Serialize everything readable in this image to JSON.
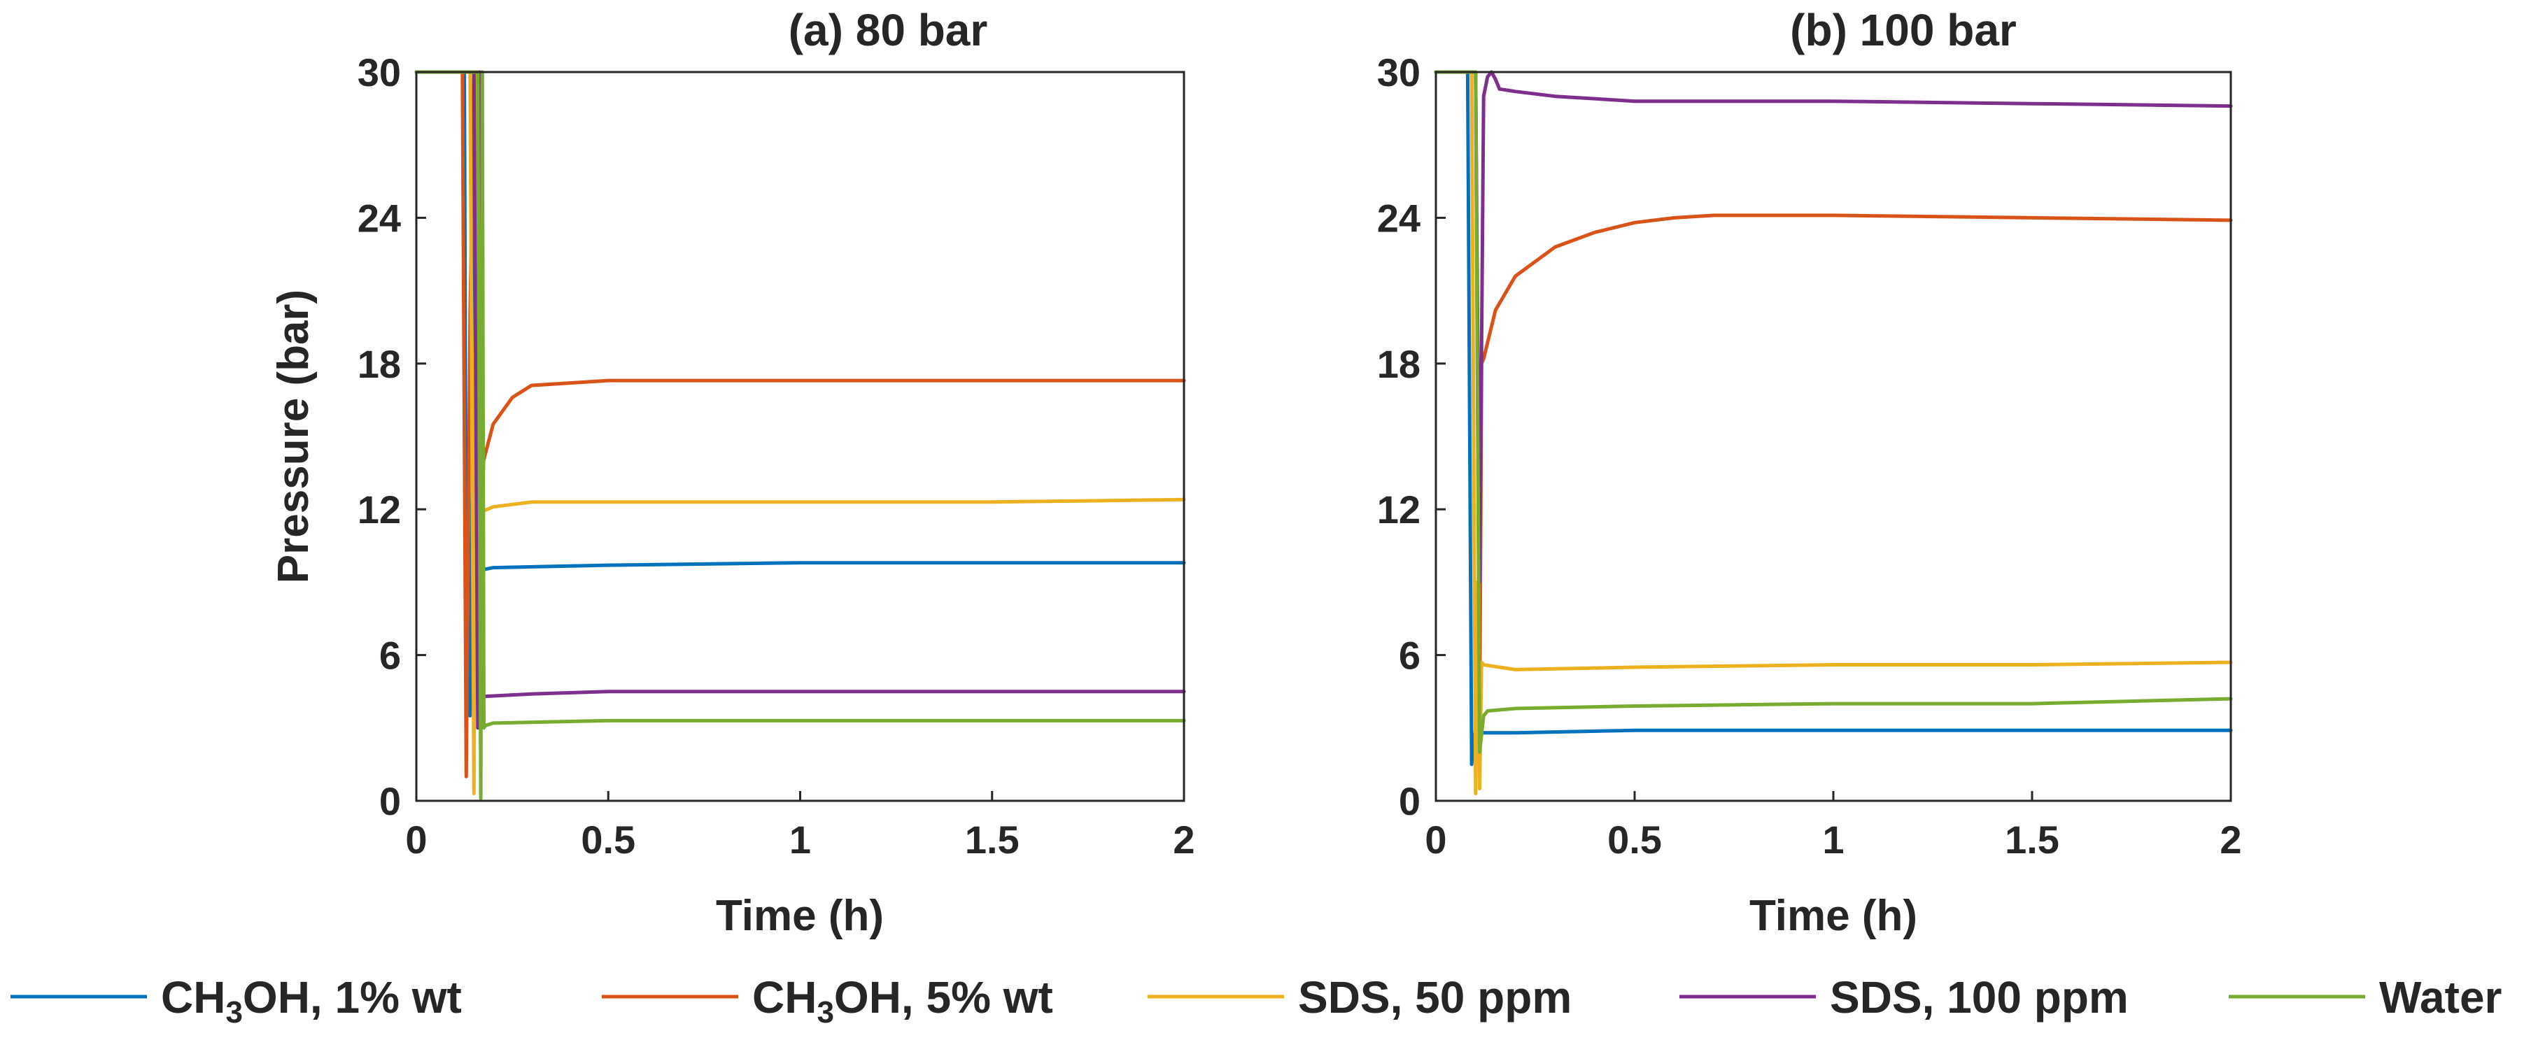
{
  "chart_data": [
    {
      "type": "line",
      "title": "(a) 80 bar",
      "xlabel": "Time (h)",
      "ylabel": "Pressure (bar)",
      "xlim": [
        0,
        2
      ],
      "ylim": [
        0,
        30
      ],
      "xticks": [
        0,
        0.5,
        1,
        1.5,
        2
      ],
      "xtick_labels": [
        "0",
        "0.5",
        "1",
        "1.5",
        "2"
      ],
      "yticks": [
        0,
        6,
        12,
        18,
        24,
        30
      ],
      "ytick_labels": [
        "0",
        "6",
        "12",
        "18",
        "24",
        "30"
      ],
      "series": [
        {
          "name": "CH3OH, 1% wt",
          "x": [
            0,
            0.125,
            0.13,
            0.14,
            0.155,
            0.17,
            0.2,
            0.5,
            1.0,
            1.5,
            2.0
          ],
          "y": [
            30,
            30,
            8,
            3.5,
            30,
            9.5,
            9.6,
            9.7,
            9.8,
            9.8,
            9.8
          ]
        },
        {
          "name": "CH3OH, 5% wt",
          "x": [
            0,
            0.12,
            0.13,
            0.14,
            0.15,
            0.16,
            0.175,
            0.2,
            0.25,
            0.3,
            0.4,
            0.5,
            1.0,
            1.5,
            2.0
          ],
          "y": [
            30,
            30,
            1,
            20,
            30,
            4,
            14,
            15.5,
            16.6,
            17.1,
            17.2,
            17.3,
            17.3,
            17.3,
            17.3
          ]
        },
        {
          "name": "SDS, 50 ppm",
          "x": [
            0,
            0.14,
            0.15,
            0.155,
            0.16,
            0.17,
            0.2,
            0.3,
            0.5,
            1.0,
            1.5,
            2.0
          ],
          "y": [
            30,
            30,
            0.3,
            30,
            12,
            11.9,
            12.1,
            12.3,
            12.3,
            12.3,
            12.3,
            12.4
          ]
        },
        {
          "name": "SDS, 100 ppm",
          "x": [
            0,
            0.15,
            0.16,
            0.165,
            0.17,
            0.18,
            0.3,
            0.5,
            1.0,
            1.5,
            2.0
          ],
          "y": [
            30,
            30,
            3,
            30,
            4.3,
            4.3,
            4.4,
            4.5,
            4.5,
            4.5,
            4.5
          ]
        },
        {
          "name": "Water",
          "x": [
            0,
            0.16,
            0.168,
            0.172,
            0.176,
            0.18,
            0.2,
            0.5,
            1.0,
            1.5,
            2.0
          ],
          "y": [
            30,
            30,
            0.1,
            30,
            3,
            3.1,
            3.2,
            3.3,
            3.3,
            3.3,
            3.3
          ]
        }
      ]
    },
    {
      "type": "line",
      "title": "(b) 100 bar",
      "xlabel": "Time (h)",
      "ylabel": "",
      "xlim": [
        0,
        2
      ],
      "ylim": [
        0,
        30
      ],
      "xticks": [
        0,
        0.5,
        1,
        1.5,
        2
      ],
      "xtick_labels": [
        "0",
        "0.5",
        "1",
        "1.5",
        "2"
      ],
      "yticks": [
        0,
        6,
        12,
        18,
        24,
        30
      ],
      "ytick_labels": [
        "0",
        "6",
        "12",
        "18",
        "24",
        "30"
      ],
      "series": [
        {
          "name": "CH3OH, 1% wt",
          "x": [
            0,
            0.08,
            0.09,
            0.1,
            0.11,
            0.12,
            0.2,
            0.5,
            1.0,
            1.5,
            2.0
          ],
          "y": [
            30,
            30,
            1.5,
            3,
            2.8,
            2.8,
            2.8,
            2.9,
            2.9,
            2.9,
            2.9
          ]
        },
        {
          "name": "CH3OH, 5% wt",
          "x": [
            0,
            0.1,
            0.11,
            0.115,
            0.12,
            0.15,
            0.2,
            0.3,
            0.4,
            0.5,
            0.6,
            0.7,
            1.0,
            1.5,
            2.0
          ],
          "y": [
            30,
            30,
            3,
            18,
            18.2,
            20.2,
            21.6,
            22.8,
            23.4,
            23.8,
            24.0,
            24.1,
            24.1,
            24.0,
            23.9
          ]
        },
        {
          "name": "SDS, 50 ppm",
          "x": [
            0,
            0.09,
            0.1,
            0.105,
            0.11,
            0.115,
            0.12,
            0.2,
            0.5,
            1.0,
            1.5,
            2.0
          ],
          "y": [
            30,
            30,
            0.3,
            9,
            0.5,
            5.7,
            5.6,
            5.4,
            5.5,
            5.6,
            5.6,
            5.7
          ]
        },
        {
          "name": "SDS, 100 ppm",
          "x": [
            0,
            0.1,
            0.11,
            0.12,
            0.13,
            0.14,
            0.15,
            0.16,
            0.2,
            0.3,
            0.5,
            1.0,
            1.5,
            2.0
          ],
          "y": [
            30,
            30,
            9,
            29,
            29.8,
            30,
            29.7,
            29.3,
            29.2,
            29.0,
            28.8,
            28.8,
            28.7,
            28.6
          ]
        },
        {
          "name": "Water",
          "x": [
            0,
            0.1,
            0.11,
            0.12,
            0.125,
            0.13,
            0.2,
            0.5,
            1.0,
            1.5,
            2.0
          ],
          "y": [
            30,
            30,
            2,
            3.5,
            3.6,
            3.7,
            3.8,
            3.9,
            4.0,
            4.0,
            4.2
          ]
        }
      ]
    }
  ],
  "legend": [
    {
      "name": "CH3OH, 1% wt",
      "pre": "CH",
      "sub": "3",
      "post": "OH, 1% wt",
      "color": "#0072BD"
    },
    {
      "name": "CH3OH, 5% wt",
      "pre": "CH",
      "sub": "3",
      "post": "OH, 5% wt",
      "color": "#D95319"
    },
    {
      "name": "SDS, 50 ppm",
      "pre": "SDS, 50 ppm",
      "sub": "",
      "post": "",
      "color": "#EDB120"
    },
    {
      "name": "SDS, 100 ppm",
      "pre": "SDS, 100 ppm",
      "sub": "",
      "post": "",
      "color": "#7E2F8E"
    },
    {
      "name": "Water",
      "pre": "Water",
      "sub": "",
      "post": "",
      "color": "#77AC30"
    }
  ]
}
